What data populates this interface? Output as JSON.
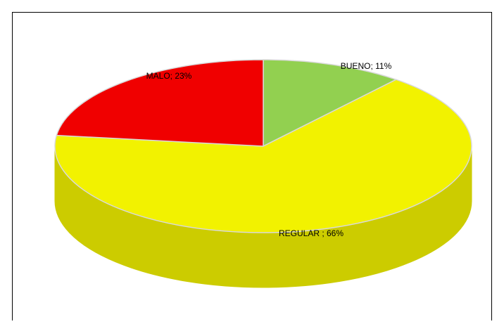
{
  "chart_data": {
    "type": "pie3d",
    "labels": [
      "BUENO; 11%",
      "REGULAR ; 66%",
      "MALO; 23%"
    ],
    "values": [
      11,
      66,
      23
    ],
    "colors": [
      "#92d050",
      "#f2f200",
      "#f00000"
    ],
    "side_colors": [
      "#6f9e3c",
      "#cccc00",
      "#b00000"
    ]
  }
}
